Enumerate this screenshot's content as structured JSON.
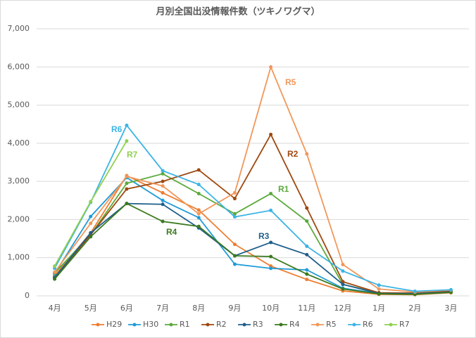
{
  "chart_data": {
    "type": "line",
    "title": "月別全国出没情報件数（ツキノワグマ）",
    "categories": [
      "4月",
      "5月",
      "6月",
      "7月",
      "8月",
      "9月",
      "10月",
      "11月",
      "12月",
      "1月",
      "2月",
      "3月"
    ],
    "series": [
      {
        "name": "H29",
        "color": "#ED7D31",
        "values": [
          530,
          1650,
          3150,
          2700,
          2250,
          1350,
          780,
          430,
          130,
          40,
          30,
          80
        ]
      },
      {
        "name": "H30",
        "color": "#1F9BD7",
        "values": [
          580,
          2080,
          3100,
          2500,
          2050,
          830,
          720,
          680,
          200,
          60,
          60,
          120
        ]
      },
      {
        "name": "R1",
        "color": "#5BAA3C",
        "values": [
          600,
          1600,
          2950,
          3200,
          2680,
          2150,
          2680,
          1960,
          300,
          80,
          70,
          110
        ]
      },
      {
        "name": "R2",
        "color": "#9E480E",
        "values": [
          480,
          1600,
          2800,
          3000,
          3300,
          2550,
          4230,
          2300,
          370,
          80,
          70,
          130
        ]
      },
      {
        "name": "R3",
        "color": "#1F5F8B",
        "values": [
          480,
          1650,
          2420,
          2400,
          1780,
          1050,
          1400,
          1080,
          300,
          60,
          60,
          100
        ]
      },
      {
        "name": "R4",
        "color": "#3B7A1F",
        "values": [
          440,
          1550,
          2420,
          1950,
          1820,
          1050,
          1030,
          570,
          180,
          50,
          40,
          90
        ]
      },
      {
        "name": "R5",
        "color": "#F1975A",
        "values": [
          620,
          1900,
          3130,
          2880,
          2150,
          2700,
          6000,
          3720,
          820,
          180,
          100,
          150
        ]
      },
      {
        "name": "R6",
        "color": "#3CB4E5",
        "values": [
          720,
          2450,
          4470,
          3280,
          2920,
          2070,
          2240,
          1300,
          650,
          280,
          120,
          160
        ]
      },
      {
        "name": "R7",
        "color": "#8FD14F",
        "values": [
          780,
          2470,
          4060,
          null,
          null,
          null,
          null,
          null,
          null,
          null,
          null,
          null
        ]
      }
    ],
    "ylim": [
      0,
      7000
    ],
    "yticks": [
      0,
      {
        "value": 1000,
        "label": "1,000"
      },
      {
        "value": 2000,
        "label": "2,000"
      },
      {
        "value": 3000,
        "label": "3,000"
      },
      {
        "value": 4000,
        "label": "4,000"
      },
      {
        "value": 5000,
        "label": "5,000"
      },
      {
        "value": 6000,
        "label": "6,000"
      },
      {
        "value": 7000,
        "label": "7,000"
      }
    ],
    "grid": true,
    "legend": "bottom",
    "annotations": [
      "R5",
      "R2",
      "R6",
      "R7",
      "R1",
      "R3",
      "R4"
    ]
  }
}
